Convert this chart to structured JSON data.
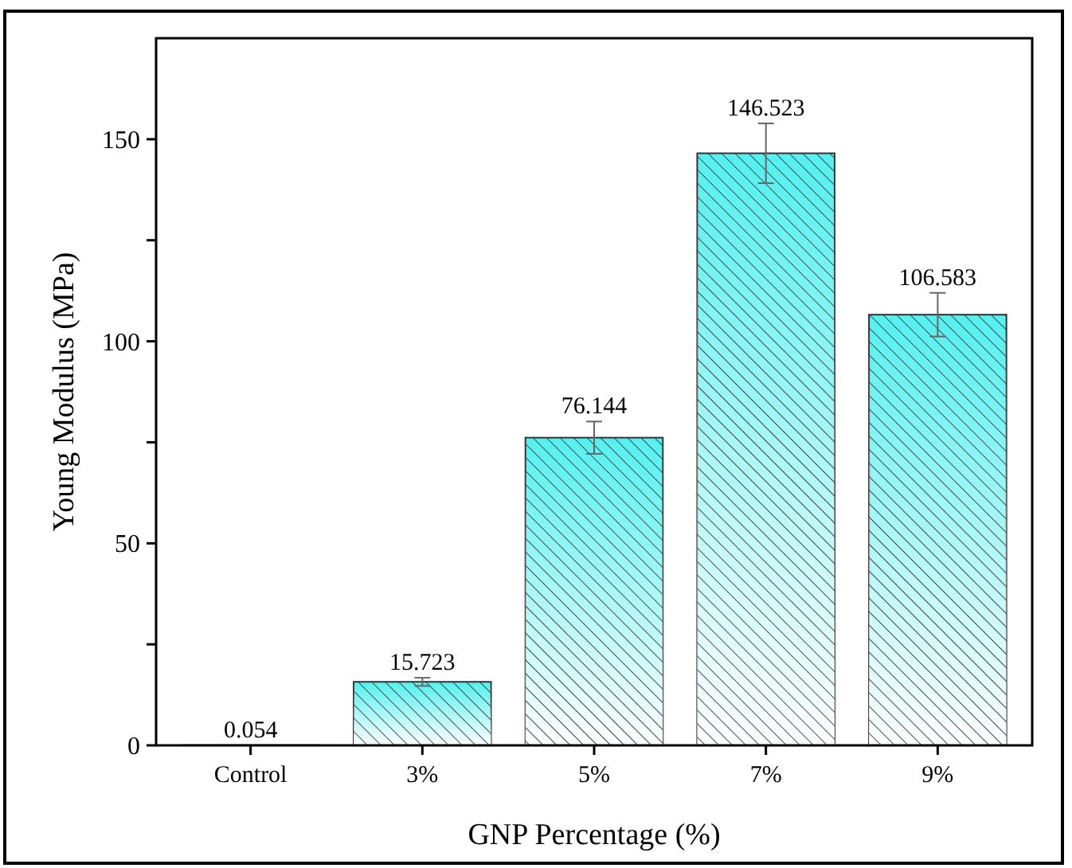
{
  "chart_data": {
    "type": "bar",
    "xlabel": "GNP Percentage (%)",
    "ylabel": "Young Modulus (MPa)",
    "categories": [
      "Control",
      "3%",
      "5%",
      "7%",
      "9%"
    ],
    "values": [
      0.054,
      15.723,
      76.144,
      146.523,
      106.583
    ],
    "errors": [
      null,
      1,
      4,
      7.4,
      5.4
    ],
    "color": "#55f0f0",
    "data_labels": true,
    "ylim": [
      0,
      175
    ],
    "yticks": [
      0,
      {
        "value": 25,
        "label": null
      },
      50,
      {
        "value": 75,
        "label": null
      },
      100,
      {
        "value": 125,
        "label": null
      },
      150
    ],
    "grid": false
  }
}
